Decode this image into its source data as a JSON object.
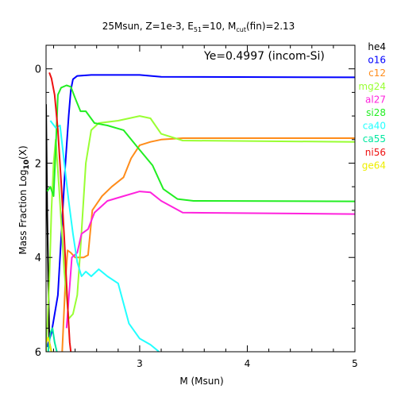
{
  "chart_data": {
    "type": "line",
    "title": {
      "main": "25Msun, Z=1e-3, E",
      "e_sub": "51",
      "mid": "=10, M",
      "m_sub": "cut",
      "tail": "(fin)=2.13"
    },
    "xlabel": "M (Msun)",
    "ylabel": {
      "main": "Mass Fraction Log",
      "sub": "10",
      "tail": "(X)"
    },
    "annotation": "Ye=0.4997 (incom-Si)",
    "xlim": [
      2.13,
      5.0
    ],
    "ylim": [
      -6,
      0.5
    ],
    "x_ticks": [
      3,
      4,
      5
    ],
    "y_ticks": [
      0,
      -2,
      -4,
      -6
    ],
    "y_tick_labels": [
      "0",
      "2",
      "4",
      "6"
    ],
    "series": [
      {
        "name": "he4",
        "color": "#000000",
        "points": [
          [
            2.13,
            -0.75
          ],
          [
            2.14,
            -3.0
          ],
          [
            2.16,
            -5.8
          ],
          [
            2.18,
            -6.0
          ]
        ]
      },
      {
        "name": "o16",
        "color": "#0000ff",
        "points": [
          [
            2.14,
            -5.9
          ],
          [
            2.18,
            -5.6
          ],
          [
            2.24,
            -4.8
          ],
          [
            2.28,
            -3.2
          ],
          [
            2.31,
            -2.0
          ],
          [
            2.34,
            -1.0
          ],
          [
            2.36,
            -0.45
          ],
          [
            2.38,
            -0.22
          ],
          [
            2.42,
            -0.15
          ],
          [
            2.55,
            -0.13
          ],
          [
            3.0,
            -0.13
          ],
          [
            3.2,
            -0.17
          ],
          [
            5.0,
            -0.18
          ]
        ]
      },
      {
        "name": "c12",
        "color": "#ff8c1a",
        "points": [
          [
            2.28,
            -6.0
          ],
          [
            2.31,
            -4.5
          ],
          [
            2.33,
            -3.85
          ],
          [
            2.36,
            -3.9
          ],
          [
            2.4,
            -4.0
          ],
          [
            2.44,
            -4.0
          ],
          [
            2.48,
            -4.0
          ],
          [
            2.52,
            -3.95
          ],
          [
            2.56,
            -3.0
          ],
          [
            2.65,
            -2.7
          ],
          [
            2.74,
            -2.5
          ],
          [
            2.85,
            -2.3
          ],
          [
            2.92,
            -1.9
          ],
          [
            3.0,
            -1.62
          ],
          [
            3.1,
            -1.55
          ],
          [
            3.2,
            -1.5
          ],
          [
            3.4,
            -1.47
          ],
          [
            5.0,
            -1.47
          ]
        ]
      },
      {
        "name": "mg24",
        "color": "#99ff33",
        "points": [
          [
            2.13,
            -6.0
          ],
          [
            2.16,
            -4.5
          ],
          [
            2.18,
            -3.0
          ],
          [
            2.2,
            -2.0
          ],
          [
            2.22,
            -1.5
          ],
          [
            2.25,
            -2.5
          ],
          [
            2.3,
            -4.3
          ],
          [
            2.34,
            -5.3
          ],
          [
            2.38,
            -5.2
          ],
          [
            2.42,
            -4.8
          ],
          [
            2.45,
            -3.8
          ],
          [
            2.5,
            -2.0
          ],
          [
            2.55,
            -1.3
          ],
          [
            2.62,
            -1.15
          ],
          [
            2.8,
            -1.1
          ],
          [
            3.0,
            -1.0
          ],
          [
            3.1,
            -1.05
          ],
          [
            3.2,
            -1.38
          ],
          [
            3.4,
            -1.52
          ],
          [
            5.0,
            -1.55
          ]
        ]
      },
      {
        "name": "al27",
        "color": "#ff22dd",
        "points": [
          [
            2.32,
            -5.5
          ],
          [
            2.37,
            -4.0
          ],
          [
            2.42,
            -3.9
          ],
          [
            2.46,
            -3.5
          ],
          [
            2.52,
            -3.4
          ],
          [
            2.58,
            -3.05
          ],
          [
            2.7,
            -2.8
          ],
          [
            2.85,
            -2.7
          ],
          [
            3.0,
            -2.6
          ],
          [
            3.1,
            -2.62
          ],
          [
            3.2,
            -2.8
          ],
          [
            3.4,
            -3.05
          ],
          [
            5.0,
            -3.08
          ]
        ]
      },
      {
        "name": "si28",
        "color": "#22ee22",
        "points": [
          [
            2.14,
            -2.6
          ],
          [
            2.17,
            -2.5
          ],
          [
            2.2,
            -2.7
          ],
          [
            2.22,
            -1.7
          ],
          [
            2.24,
            -0.55
          ],
          [
            2.27,
            -0.4
          ],
          [
            2.32,
            -0.35
          ],
          [
            2.36,
            -0.38
          ],
          [
            2.4,
            -0.62
          ],
          [
            2.45,
            -0.9
          ],
          [
            2.5,
            -0.9
          ],
          [
            2.58,
            -1.15
          ],
          [
            2.7,
            -1.2
          ],
          [
            2.85,
            -1.3
          ],
          [
            3.0,
            -1.72
          ],
          [
            3.12,
            -2.05
          ],
          [
            3.22,
            -2.55
          ],
          [
            3.35,
            -2.76
          ],
          [
            3.5,
            -2.8
          ],
          [
            5.0,
            -2.81
          ]
        ]
      },
      {
        "name": "ca40",
        "color": "#22ffff",
        "points": [
          [
            2.17,
            -1.1
          ],
          [
            2.22,
            -1.25
          ],
          [
            2.26,
            -1.2
          ],
          [
            2.3,
            -2.0
          ],
          [
            2.34,
            -2.8
          ],
          [
            2.38,
            -3.5
          ],
          [
            2.42,
            -4.1
          ],
          [
            2.46,
            -4.4
          ],
          [
            2.5,
            -4.3
          ],
          [
            2.55,
            -4.4
          ],
          [
            2.62,
            -4.25
          ],
          [
            2.7,
            -4.4
          ],
          [
            2.8,
            -4.55
          ],
          [
            2.9,
            -5.4
          ],
          [
            3.0,
            -5.72
          ],
          [
            3.1,
            -5.85
          ],
          [
            3.18,
            -6.0
          ]
        ]
      },
      {
        "name": "ca55",
        "color": "#00e8a0",
        "points": [
          [
            2.15,
            -6.0
          ],
          [
            2.17,
            -5.6
          ],
          [
            2.19,
            -5.5
          ],
          [
            2.21,
            -5.8
          ],
          [
            2.23,
            -6.0
          ]
        ]
      },
      {
        "name": "ni56",
        "color": "#ee1111",
        "points": [
          [
            2.16,
            -0.08
          ],
          [
            2.18,
            -0.2
          ],
          [
            2.21,
            -0.55
          ],
          [
            2.24,
            -1.3
          ],
          [
            2.27,
            -2.4
          ],
          [
            2.3,
            -3.6
          ],
          [
            2.33,
            -5.0
          ],
          [
            2.35,
            -5.8
          ],
          [
            2.36,
            -6.0
          ]
        ]
      },
      {
        "name": "ge64",
        "color": "#eeee00",
        "points": [
          [
            2.13,
            -5.8
          ],
          [
            2.15,
            -5.7
          ],
          [
            2.18,
            -6.0
          ]
        ]
      }
    ]
  }
}
